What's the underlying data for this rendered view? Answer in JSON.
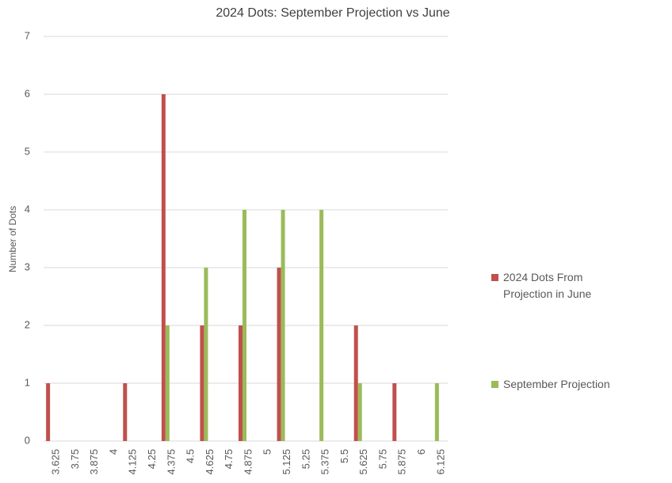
{
  "chart_data": {
    "type": "bar",
    "title": "2024 Dots: September Projection vs June",
    "y_label": "Number of Dots",
    "categories": [
      "3.625",
      "3.75",
      "3.875",
      "4",
      "4.125",
      "4.25",
      "4.375",
      "4.5",
      "4.625",
      "4.75",
      "4.875",
      "5",
      "5.125",
      "5.25",
      "5.375",
      "5.5",
      "5.625",
      "5.75",
      "5.875",
      "6",
      "6.125"
    ],
    "series": [
      {
        "name": "2024 Dots From Projection in June",
        "color": "#c0504d",
        "values": [
          1,
          0,
          0,
          0,
          1,
          0,
          6,
          0,
          2,
          0,
          2,
          0,
          3,
          0,
          0,
          0,
          2,
          0,
          1,
          0,
          0
        ]
      },
      {
        "name": "September Projection",
        "color": "#9bbb59",
        "values": [
          0,
          0,
          0,
          0,
          0,
          0,
          2,
          0,
          3,
          0,
          4,
          0,
          4,
          0,
          4,
          0,
          1,
          0,
          0,
          0,
          1
        ]
      }
    ],
    "ylim": [
      0,
      7
    ],
    "yticks": [
      0,
      1,
      2,
      3,
      4,
      5,
      6,
      7
    ],
    "grid": true,
    "legend": "right"
  }
}
